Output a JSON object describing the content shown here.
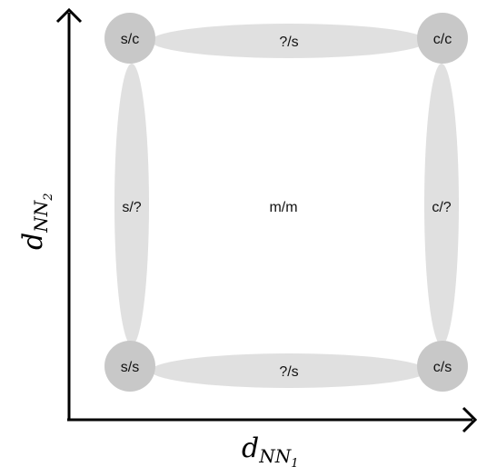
{
  "axes": {
    "x_label_main": "d",
    "x_label_sub": "NN",
    "x_label_subsub": "1",
    "y_label_main": "d",
    "y_label_sub": "NN",
    "y_label_subsub": "2"
  },
  "nodes": {
    "top_left": "s/c",
    "top_right": "c/c",
    "bottom_left": "s/s",
    "bottom_right": "c/s",
    "center": "m/m"
  },
  "edges": {
    "top": "?/s",
    "bottom": "?/s",
    "left": "s/?",
    "right": "c/?"
  },
  "colors": {
    "circle": "#c8c8c8",
    "ellipse": "#e0e0e0",
    "axis": "#000000"
  }
}
